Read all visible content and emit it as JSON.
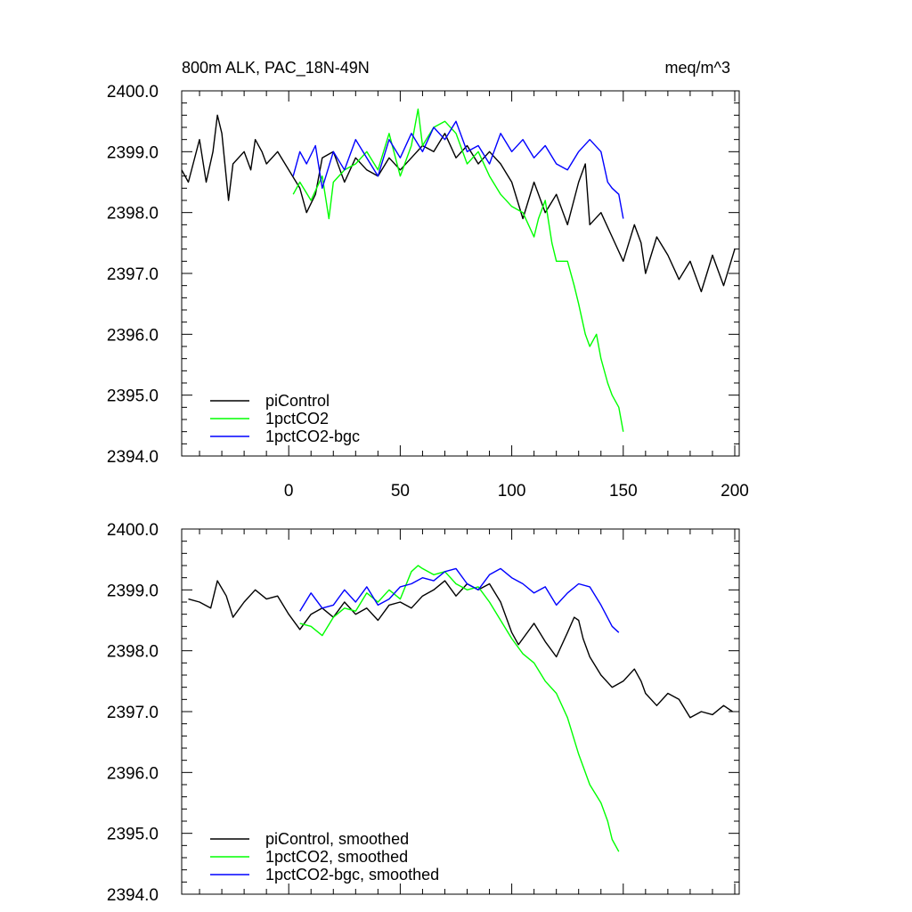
{
  "chart_data": [
    {
      "type": "line",
      "title": "800m ALK, PAC_18N-49N",
      "units": "meq/m^3",
      "xlim": [
        -48,
        202
      ],
      "ylim": [
        2394.0,
        2400.0
      ],
      "yticks": [
        "2394.0",
        "2395.0",
        "2396.0",
        "2397.0",
        "2398.0",
        "2399.0",
        "2400.0"
      ],
      "xticks": [
        "0",
        "50",
        "100",
        "150",
        "200"
      ],
      "legend_position": "bottom-left",
      "series": [
        {
          "name": "piControl",
          "color": "#000000",
          "x": [
            -48,
            -45,
            -40,
            -37,
            -34,
            -32,
            -30,
            -27,
            -25,
            -20,
            -17,
            -15,
            -12,
            -10,
            -5,
            0,
            5,
            8,
            12,
            15,
            20,
            25,
            30,
            35,
            40,
            45,
            50,
            55,
            60,
            65,
            70,
            75,
            80,
            85,
            90,
            95,
            100,
            105,
            110,
            115,
            120,
            125,
            130,
            133,
            135,
            140,
            145,
            150,
            155,
            158,
            160,
            165,
            170,
            175,
            180,
            185,
            190,
            195,
            200
          ],
          "y": [
            2398.7,
            2398.5,
            2399.2,
            2398.5,
            2399.0,
            2399.6,
            2399.3,
            2398.2,
            2398.8,
            2399.0,
            2398.7,
            2399.2,
            2399.0,
            2398.8,
            2399.0,
            2398.7,
            2398.4,
            2398.0,
            2398.3,
            2398.9,
            2399.0,
            2398.5,
            2398.9,
            2398.7,
            2398.6,
            2398.9,
            2398.7,
            2398.9,
            2399.1,
            2399.0,
            2399.3,
            2398.9,
            2399.1,
            2398.8,
            2399.0,
            2398.8,
            2398.5,
            2397.9,
            2398.5,
            2398.0,
            2398.3,
            2397.8,
            2398.5,
            2398.8,
            2397.8,
            2398.0,
            2397.6,
            2397.2,
            2397.8,
            2397.5,
            2397.0,
            2397.6,
            2397.3,
            2396.9,
            2397.2,
            2396.7,
            2397.3,
            2396.8,
            2397.4
          ]
        },
        {
          "name": "1pctCO2",
          "color": "#00ff00",
          "x": [
            2,
            5,
            10,
            15,
            18,
            20,
            25,
            30,
            35,
            40,
            45,
            50,
            55,
            58,
            60,
            65,
            70,
            75,
            80,
            85,
            90,
            95,
            100,
            105,
            110,
            112,
            115,
            118,
            120,
            125,
            128,
            130,
            133,
            135,
            138,
            140,
            143,
            145,
            148,
            150
          ],
          "y": [
            2398.3,
            2398.5,
            2398.2,
            2398.6,
            2397.9,
            2398.5,
            2398.7,
            2398.8,
            2399.0,
            2398.7,
            2399.3,
            2398.6,
            2399.1,
            2399.7,
            2399.1,
            2399.4,
            2399.5,
            2399.3,
            2398.8,
            2399.0,
            2398.6,
            2398.3,
            2398.1,
            2398.0,
            2397.6,
            2397.9,
            2398.2,
            2397.5,
            2397.2,
            2397.2,
            2396.8,
            2396.5,
            2396.0,
            2395.8,
            2396.0,
            2395.6,
            2395.2,
            2395.0,
            2394.8,
            2394.4
          ]
        },
        {
          "name": "1pctCO2-bgc",
          "color": "#0000ff",
          "x": [
            2,
            5,
            8,
            12,
            15,
            20,
            25,
            30,
            35,
            40,
            45,
            50,
            55,
            60,
            65,
            70,
            75,
            80,
            85,
            90,
            95,
            100,
            105,
            110,
            115,
            120,
            125,
            130,
            135,
            140,
            143,
            145,
            148,
            150
          ],
          "y": [
            2398.6,
            2399.0,
            2398.8,
            2399.1,
            2398.4,
            2399.0,
            2398.7,
            2399.2,
            2398.9,
            2398.6,
            2399.2,
            2398.9,
            2399.3,
            2399.0,
            2399.4,
            2399.2,
            2399.5,
            2399.0,
            2399.1,
            2398.8,
            2399.3,
            2399.0,
            2399.2,
            2398.9,
            2399.1,
            2398.8,
            2398.7,
            2399.0,
            2399.2,
            2399.0,
            2398.5,
            2398.4,
            2398.3,
            2397.9
          ]
        }
      ]
    },
    {
      "type": "line",
      "xlim": [
        -48,
        202
      ],
      "ylim": [
        2394.0,
        2400.0
      ],
      "yticks": [
        "2394.0",
        "2395.0",
        "2396.0",
        "2397.0",
        "2398.0",
        "2399.0",
        "2400.0"
      ],
      "legend_position": "bottom-left",
      "series": [
        {
          "name": "piControl, smoothed",
          "color": "#000000",
          "x": [
            -45,
            -40,
            -35,
            -32,
            -28,
            -25,
            -20,
            -15,
            -10,
            -5,
            0,
            5,
            10,
            15,
            20,
            25,
            30,
            35,
            40,
            45,
            50,
            55,
            60,
            65,
            70,
            75,
            80,
            85,
            90,
            95,
            100,
            103,
            105,
            110,
            115,
            120,
            125,
            128,
            130,
            132,
            135,
            140,
            145,
            150,
            155,
            158,
            160,
            165,
            170,
            175,
            180,
            185,
            190,
            195,
            199
          ],
          "y": [
            2398.85,
            2398.8,
            2398.7,
            2399.15,
            2398.9,
            2398.55,
            2398.8,
            2399.0,
            2398.85,
            2398.9,
            2398.6,
            2398.35,
            2398.6,
            2398.7,
            2398.55,
            2398.8,
            2398.6,
            2398.7,
            2398.5,
            2398.75,
            2398.8,
            2398.7,
            2398.9,
            2399.0,
            2399.15,
            2398.9,
            2399.1,
            2399.0,
            2399.1,
            2398.8,
            2398.3,
            2398.1,
            2398.2,
            2398.45,
            2398.15,
            2397.9,
            2398.3,
            2398.55,
            2398.5,
            2398.2,
            2397.9,
            2397.6,
            2397.4,
            2397.5,
            2397.7,
            2397.5,
            2397.3,
            2397.1,
            2397.3,
            2397.2,
            2396.9,
            2397.0,
            2396.95,
            2397.1,
            2397.0
          ]
        },
        {
          "name": "1pctCO2, smoothed",
          "color": "#00ff00",
          "x": [
            5,
            10,
            15,
            20,
            25,
            30,
            35,
            40,
            45,
            50,
            55,
            58,
            60,
            65,
            70,
            75,
            80,
            85,
            90,
            95,
            100,
            105,
            110,
            115,
            120,
            125,
            130,
            133,
            135,
            140,
            143,
            145,
            148
          ],
          "y": [
            2398.45,
            2398.4,
            2398.25,
            2398.55,
            2398.7,
            2398.65,
            2398.95,
            2398.8,
            2399.0,
            2398.85,
            2399.3,
            2399.4,
            2399.35,
            2399.25,
            2399.3,
            2399.1,
            2399.0,
            2399.05,
            2398.8,
            2398.5,
            2398.2,
            2397.95,
            2397.8,
            2397.5,
            2397.3,
            2396.9,
            2396.3,
            2396.0,
            2395.8,
            2395.5,
            2395.2,
            2394.9,
            2394.7
          ]
        },
        {
          "name": "1pctCO2-bgc, smoothed",
          "color": "#0000ff",
          "x": [
            5,
            10,
            15,
            20,
            25,
            30,
            35,
            40,
            45,
            50,
            55,
            60,
            65,
            70,
            75,
            80,
            85,
            90,
            95,
            100,
            105,
            110,
            115,
            120,
            125,
            130,
            135,
            140,
            145,
            148
          ],
          "y": [
            2398.65,
            2398.95,
            2398.7,
            2398.75,
            2399.0,
            2398.8,
            2399.05,
            2398.75,
            2398.85,
            2399.05,
            2399.1,
            2399.2,
            2399.15,
            2399.3,
            2399.35,
            2399.1,
            2399.0,
            2399.25,
            2399.35,
            2399.2,
            2399.1,
            2398.95,
            2399.05,
            2398.75,
            2398.95,
            2399.1,
            2399.05,
            2398.75,
            2398.4,
            2398.3
          ]
        }
      ]
    }
  ]
}
